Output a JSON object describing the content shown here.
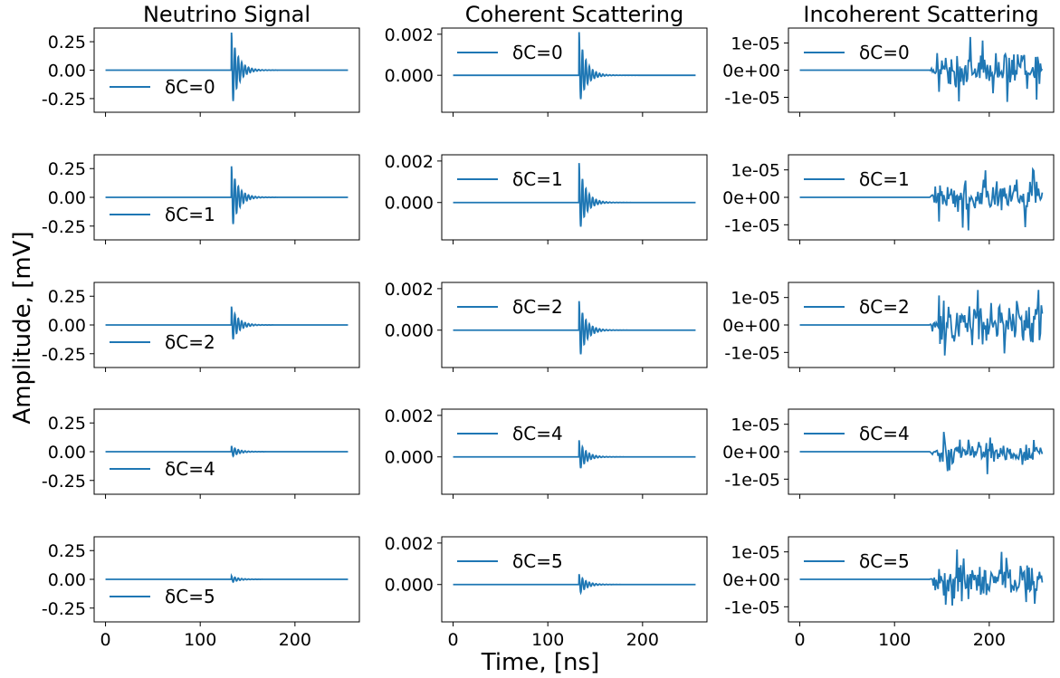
{
  "figure": {
    "ylabel": "Amplitude, [mV]",
    "xlabel": "Time, [ns]",
    "line_color": "#1f77b4"
  },
  "chart_data": [
    {
      "type": "line",
      "title": "Neutrino Signal",
      "xlim": [
        -12,
        268
      ],
      "ylim": [
        -0.37,
        0.37
      ],
      "xticks": [
        0,
        100,
        200
      ],
      "xtick_labels": [
        "0",
        "100",
        "200"
      ],
      "yticks": [
        0.25,
        0,
        -0.25
      ],
      "ytick_labels": [
        "0.25",
        "0.00",
        "-0.25"
      ],
      "legend_location": "lower-left",
      "signal_style": "ringdown",
      "onset_ns": 133,
      "series": [
        {
          "name": "δC=0",
          "peak": 0.33,
          "trough": -0.35
        },
        {
          "name": "δC=1",
          "peak": 0.27,
          "trough": -0.3
        },
        {
          "name": "δC=2",
          "peak": 0.16,
          "trough": -0.16
        },
        {
          "name": "δC=4",
          "peak": 0.05,
          "trough": -0.05
        },
        {
          "name": "δC=5",
          "peak": 0.03,
          "trough": -0.03
        }
      ]
    },
    {
      "type": "line",
      "title": "Coherent Scattering",
      "xlim": [
        -12,
        268
      ],
      "ylim": [
        -0.0018,
        0.0023
      ],
      "xticks": [
        0,
        100,
        200
      ],
      "xtick_labels": [
        "0",
        "100",
        "200"
      ],
      "yticks": [
        0.002,
        0
      ],
      "ytick_labels": [
        "0.002",
        "0.000"
      ],
      "legend_location": "upper-left",
      "signal_style": "ringdown",
      "onset_ns": 133,
      "series": [
        {
          "name": "δC=0",
          "peak": 0.0021,
          "trough": -0.0015
        },
        {
          "name": "δC=1",
          "peak": 0.0019,
          "trough": -0.0015
        },
        {
          "name": "δC=2",
          "peak": 0.0014,
          "trough": -0.0015
        },
        {
          "name": "δC=4",
          "peak": 0.0008,
          "trough": -0.0007
        },
        {
          "name": "δC=5",
          "peak": 0.0005,
          "trough": -0.0005
        }
      ]
    },
    {
      "type": "line",
      "title": "Incoherent Scattering",
      "xlim": [
        -12,
        268
      ],
      "ylim": [
        -1.55e-05,
        1.55e-05
      ],
      "xticks": [
        0,
        100,
        200
      ],
      "xtick_labels": [
        "0",
        "100",
        "200"
      ],
      "yticks": [
        1e-05,
        0,
        -1e-05
      ],
      "ytick_labels": [
        "1e-05",
        "0e+00",
        "-1e-05"
      ],
      "legend_location": "upper-left",
      "signal_style": "noise",
      "onset_ns": 137,
      "series": [
        {
          "name": "δC=0",
          "peak": 1.32e-05,
          "trough": -1.28e-05
        },
        {
          "name": "δC=1",
          "peak": 1.13e-05,
          "trough": -1.35e-05
        },
        {
          "name": "δC=2",
          "peak": 1.58e-05,
          "trough": -1.37e-05
        },
        {
          "name": "δC=4",
          "peak": 8.2e-06,
          "trough": -8.5e-06
        },
        {
          "name": "δC=5",
          "peak": 1.24e-05,
          "trough": -1e-05
        }
      ]
    }
  ]
}
